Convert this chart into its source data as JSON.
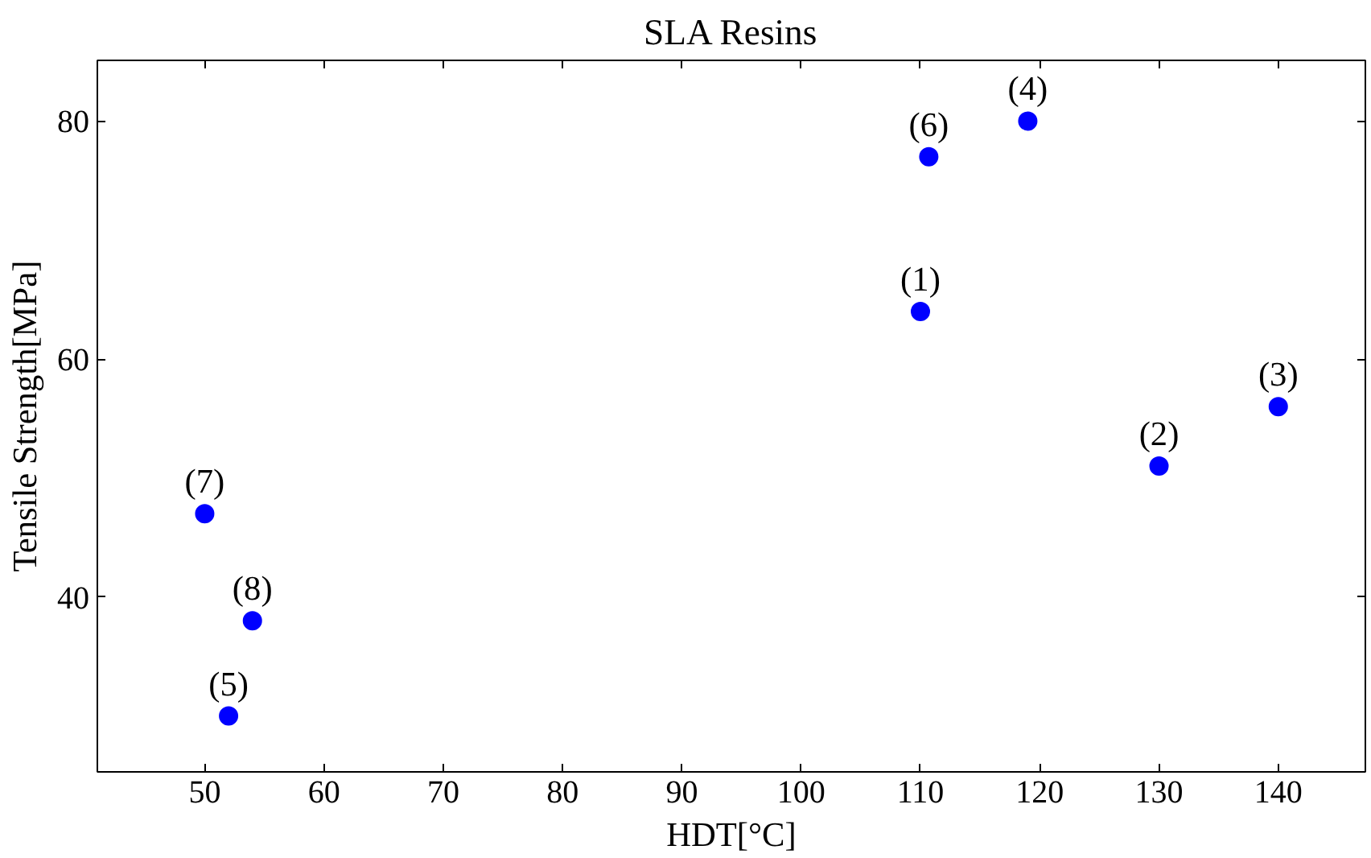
{
  "chart_data": {
    "type": "scatter",
    "title": "SLA Resins",
    "xlabel": "HDT[°C]",
    "ylabel": "Tensile Strength[MPa]",
    "x": [
      110,
      130,
      140,
      119,
      52,
      110.7,
      50,
      54
    ],
    "series": [
      {
        "color": "#0000ff",
        "values": [
          64,
          51,
          56,
          80,
          30,
          77,
          47,
          38
        ]
      }
    ],
    "xlim": [
      41,
      147.3
    ],
    "ylim": [
      25.3,
      85.1
    ],
    "xticks": [
      50,
      60,
      70,
      80,
      90,
      100,
      110,
      120,
      130,
      140
    ],
    "yticks": [
      40,
      60,
      80
    ],
    "grid": false,
    "marker": "circle",
    "annotations": [
      {
        "text": "(1)",
        "x": 110,
        "y": 64
      },
      {
        "text": "(2)",
        "x": 130,
        "y": 51
      },
      {
        "text": "(3)",
        "x": 140,
        "y": 56
      },
      {
        "text": "(4)",
        "x": 119,
        "y": 80
      },
      {
        "text": "(5)",
        "x": 52,
        "y": 30
      },
      {
        "text": "(6)",
        "x": 110.7,
        "y": 77
      },
      {
        "text": "(7)",
        "x": 50,
        "y": 47
      },
      {
        "text": "(8)",
        "x": 54,
        "y": 38
      }
    ]
  }
}
